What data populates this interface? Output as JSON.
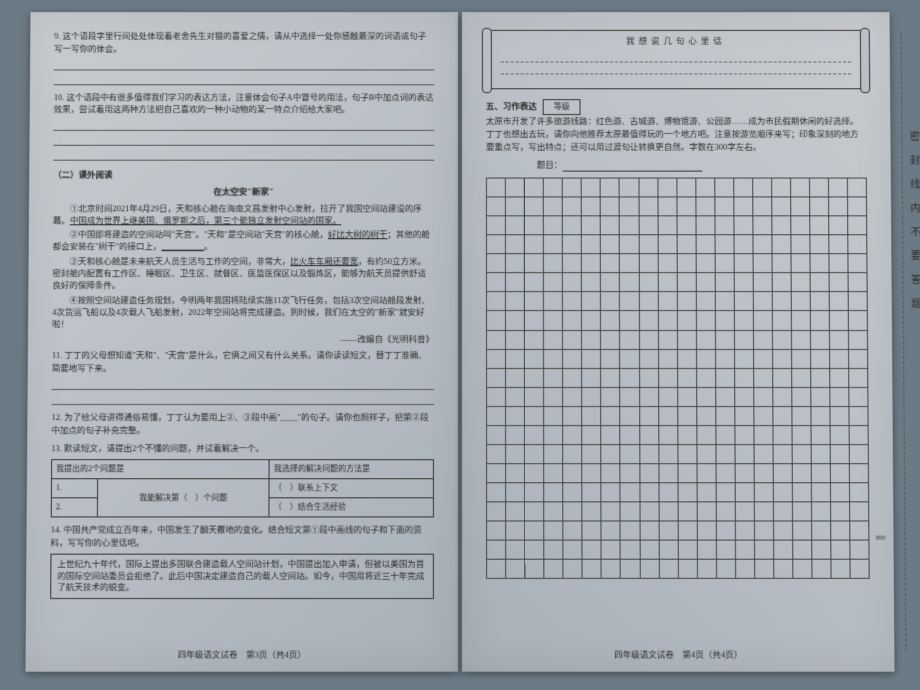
{
  "left": {
    "q9": "9. 这个语段字里行间处处体现着老舍先生对猫的喜爱之情，请从中选择一处你感触最深的词语或句子写一写你的体会。",
    "q10": "10. 这个语段中有很多值得我们学习的表达方法，注意体会句子A中冒号的用法，句子B中加点词的表达效果，尝试着用这两种方法把自己喜欢的一种小动物的某一特点介绍给大家吧。",
    "section2": "（二）课外阅读",
    "passage_title": "在太空安\"新家\"",
    "p1a": "①北京时间2021年4月29日，天和核心舱在海南文昌发射中心发射，拉开了我国空间站建设的序幕。",
    "p1b": "中国成为世界上继美国、俄罗斯之后，第三个能独立发射空间站的国家。",
    "p2a": "②中国即将建造的空间站叫\"天宫\"。\"天和\"是空间站\"天宫\"的核心舱，",
    "p2b": "好比大树的树干",
    "p2c": "；其他的舱都会安装在\"树干\"的接口上，",
    "p2d": "__________",
    "p2e": "。",
    "p3a": "③天和核心舱是未来航天人员生活与工作的空间，非常大，",
    "p3b": "比火车车厢还要宽",
    "p3c": "，有约50立方米。密封舱内配置有工作区、睡眠区、卫生区、就餐区、医监医保区以及锻炼区，能够为航天员提供舒适良好的保障条件。",
    "p4": "④按照空间站建造任务规划，今明两年我国将陆续实施11次飞行任务，包括3次空间站舱段发射、4次货运飞船以及4次载人飞船发射，2022年空间站将完成建造。到时候，我们在太空的\"新家\"就安好啦！",
    "attribution": "——改编自《光明科普》",
    "q11": "11. 丁丁的父母想知道\"天和\"、\"天宫\"是什么，它俩之间又有什么关系。请你读读短文，替丁丁准确、简要地写下来。",
    "q12": "12. 为了给父母讲得通俗易懂，丁丁认为要用上②、③段中画\"____\"的句子。请你也照样子，把第②段中加点的句子补充完整。",
    "q13": "13. 默读短文，请提出2个不懂的问题，并试着解决一个。",
    "table": {
      "h1": "我提出的2个问题是",
      "h2": "我选择的解决问题的方法是",
      "r1": "1.",
      "r2": "2.",
      "mid": "我能解决第（　）个问题",
      "opt1": "（　）联系上下文",
      "opt2": "（　）结合生活经验"
    },
    "q14": "14. 中国共产党成立百年来，中国发生了翻天覆地的变化。结合短文第①段中画线的句子和下面的资料，写写你的心里话吧。",
    "material": "上世纪九十年代，国际上提出多国联合建造载人空间站计划，中国提出加入申请，但被以美国为首的国际空间站委员会拒绝了。此后中国决定建造自己的载人空间站。如今，中国用将近三十年完成了航天技术的蜕变。",
    "footer": "四年级语文试卷　第3页（共4页）"
  },
  "right": {
    "scroll_title": "我想说几句心里话",
    "section5": "五、习作表达",
    "grade": "等级",
    "prompt": "太原市开发了许多旅游线路：红色游、古城游、博物馆游、公园游……成为市民假期休闲的好选择。丁丁也想出去玩，请你向他推荐太原最值得玩的一个地方吧。注意按游览顺序来写；印象深刻的地方要重点写，写出特点；还可以用过渡句让转换更自然。字数在300字左右。",
    "topic_label": "题目：",
    "count": "300",
    "footer": "四年级语文试卷　第4页（共4页）",
    "margin": "密封线内不要答题"
  },
  "grid": {
    "rows": 21,
    "cols": 20
  }
}
